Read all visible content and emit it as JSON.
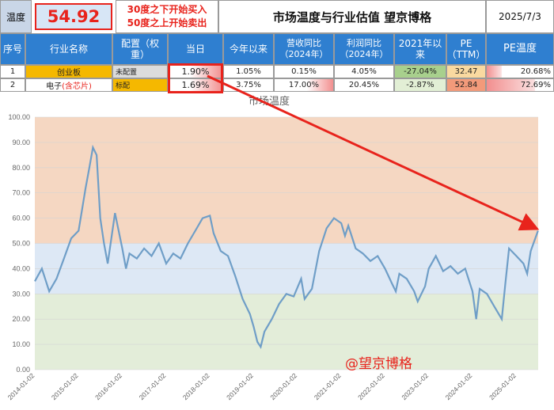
{
  "header": {
    "temp_label": "温度",
    "temp_value": "54.92",
    "note_line1": "30度之下开始买入",
    "note_line2": "50度之上开始卖出",
    "title": "市场温度与行业估值 望京博格",
    "date": "2025/7/3"
  },
  "columns": [
    "序号",
    "行业名称",
    "配置（权重）",
    "当日",
    "今年以来",
    "营收同比（2024年）",
    "利润同比（2024年）",
    "2021年以来",
    "PE（TTM）",
    "PE温度"
  ],
  "rows": [
    {
      "no": "1",
      "name": "创业板",
      "name_extra": "",
      "config": "未配置",
      "today": "1.90%",
      "ytd": "1.05%",
      "rev": "0.15%",
      "profit": "4.05%",
      "since2021": "-27.04%",
      "pe": "32.47",
      "pe_temp": "20.68%"
    },
    {
      "no": "2",
      "name": "电子",
      "name_extra": "(含芯片)",
      "config": "标配",
      "today": "1.69%",
      "ytd": "3.75%",
      "rev": "17.00%",
      "profit": "20.45%",
      "since2021": "-2.87%",
      "pe": "52.84",
      "pe_temp": "72.69%"
    }
  ],
  "chart_data": {
    "type": "line",
    "title": "市场温度",
    "watermark": "@望京博格",
    "ylim": [
      0,
      100
    ],
    "yticks": [
      "0.00",
      "10.00",
      "20.00",
      "30.00",
      "40.00",
      "50.00",
      "60.00",
      "70.00",
      "80.00",
      "90.00",
      "100.00"
    ],
    "xticks": [
      "2014-01-02",
      "2015-01-02",
      "2016-01-02",
      "2017-01-02",
      "2018-01-02",
      "2019-01-02",
      "2020-01-02",
      "2021-01-02",
      "2022-01-02",
      "2023-01-02",
      "2024-01-02",
      "2025-01-02"
    ],
    "bands": [
      {
        "from": 0,
        "to": 30,
        "color": "#e3edd9"
      },
      {
        "from": 30,
        "to": 50,
        "color": "#dde8f5"
      },
      {
        "from": 50,
        "to": 100,
        "color": "#f5d7c2"
      }
    ],
    "line_color": "#6f9ec7",
    "series": [
      {
        "x": [
          "2014-01",
          "2014-03",
          "2014-05",
          "2014-07",
          "2014-09",
          "2014-11",
          "2015-01",
          "2015-03",
          "2015-04",
          "2015-05",
          "2015-06",
          "2015-07",
          "2015-08",
          "2015-09",
          "2015-11",
          "2016-01",
          "2016-02",
          "2016-03",
          "2016-05",
          "2016-07",
          "2016-09",
          "2016-11",
          "2017-01",
          "2017-03",
          "2017-05",
          "2017-07",
          "2017-09",
          "2017-11",
          "2018-01",
          "2018-02",
          "2018-04",
          "2018-06",
          "2018-08",
          "2018-10",
          "2018-12",
          "2019-01",
          "2019-02",
          "2019-03",
          "2019-04",
          "2019-06",
          "2019-08",
          "2019-10",
          "2019-12",
          "2020-02",
          "2020-03",
          "2020-05",
          "2020-07",
          "2020-09",
          "2020-11",
          "2021-01",
          "2021-02",
          "2021-03",
          "2021-05",
          "2021-07",
          "2021-09",
          "2021-11",
          "2022-01",
          "2022-03",
          "2022-04",
          "2022-05",
          "2022-07",
          "2022-09",
          "2022-10",
          "2022-12",
          "2023-01",
          "2023-03",
          "2023-05",
          "2023-07",
          "2023-09",
          "2023-11",
          "2024-01",
          "2024-02",
          "2024-03",
          "2024-05",
          "2024-07",
          "2024-09",
          "2024-10",
          "2024-11",
          "2025-01",
          "2025-03",
          "2025-04",
          "2025-05",
          "2025-07"
        ],
        "y": [
          35,
          40,
          31,
          36,
          44,
          52,
          55,
          72,
          80,
          88,
          85,
          60,
          50,
          42,
          62,
          48,
          40,
          46,
          44,
          48,
          45,
          50,
          42,
          46,
          44,
          50,
          55,
          60,
          61,
          54,
          47,
          45,
          37,
          28,
          22,
          17,
          11,
          9,
          15,
          20,
          26,
          30,
          29,
          36,
          28,
          32,
          47,
          56,
          60,
          58,
          53,
          57,
          48,
          46,
          43,
          45,
          40,
          34,
          31,
          38,
          36,
          31,
          27,
          33,
          40,
          45,
          39,
          41,
          38,
          40,
          31,
          20,
          32,
          30,
          25,
          20,
          34,
          48,
          45,
          42,
          38,
          47,
          55
        ]
      }
    ]
  },
  "annotation": {
    "target_date": "2025-07",
    "target_value": 54.92
  },
  "colors": {
    "header_bg": "#2f7fd0",
    "accent_red": "#e8231c",
    "temp_box_bg": "#d7e6f6",
    "cyb_bg": "#f5b800",
    "green_cell": "#a8d08d"
  }
}
